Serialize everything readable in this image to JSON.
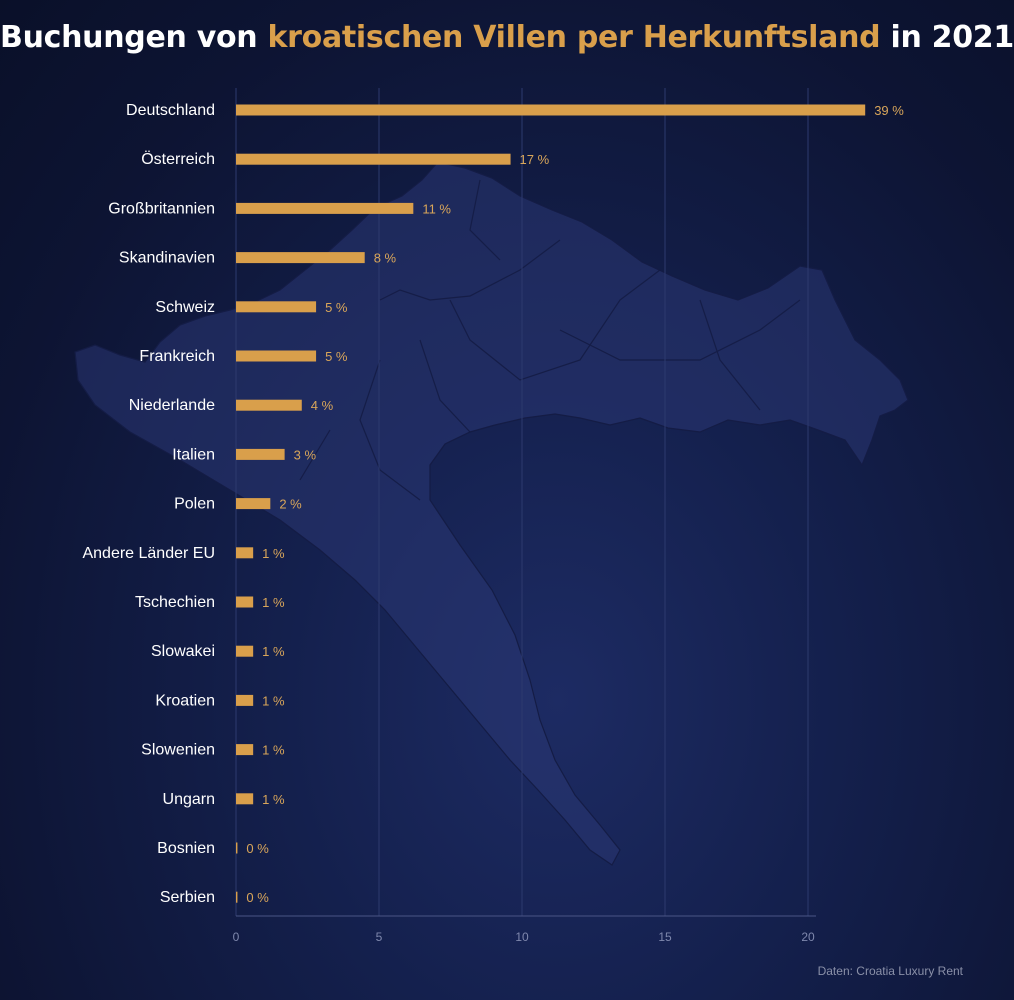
{
  "title": {
    "part1": "Buchungen von ",
    "highlight": "kroatischen Villen per Herkunftsland",
    "part2": " in 2021"
  },
  "source": "Daten: Croatia Luxury Rent",
  "colors": {
    "bar": "#d99f4b",
    "label": "#ffffff",
    "value": "#d9a65a",
    "tick": "#7f88ad",
    "grid": "#2d3a6e",
    "axis": "#4a5585"
  },
  "chart_data": {
    "type": "bar",
    "orientation": "horizontal",
    "categories": [
      "Deutschland",
      "Österreich",
      "Großbritannien",
      "Skandinavien",
      "Schweiz",
      "Frankreich",
      "Niederlande",
      "Italien",
      "Polen",
      "Andere Länder EU",
      "Tschechien",
      "Slowakei",
      "Kroatien",
      "Slowenien",
      "Ungarn",
      "Bosnien",
      "Serbien"
    ],
    "values": [
      22,
      9.6,
      6.2,
      4.5,
      2.8,
      2.8,
      2.3,
      1.7,
      1.2,
      0.6,
      0.6,
      0.6,
      0.6,
      0.6,
      0.6,
      0.05,
      0.05
    ],
    "value_labels": [
      "39 %",
      "17 %",
      "11 %",
      "8 %",
      "5 %",
      "5 %",
      "4 %",
      "3 %",
      "2 %",
      "1 %",
      "1 %",
      "1 %",
      "1 %",
      "1 %",
      "1 %",
      "0 %",
      "0 %"
    ],
    "xticks": [
      0,
      5,
      10,
      15,
      20
    ],
    "xlim": [
      0,
      20.3
    ],
    "grid": "vertical"
  }
}
